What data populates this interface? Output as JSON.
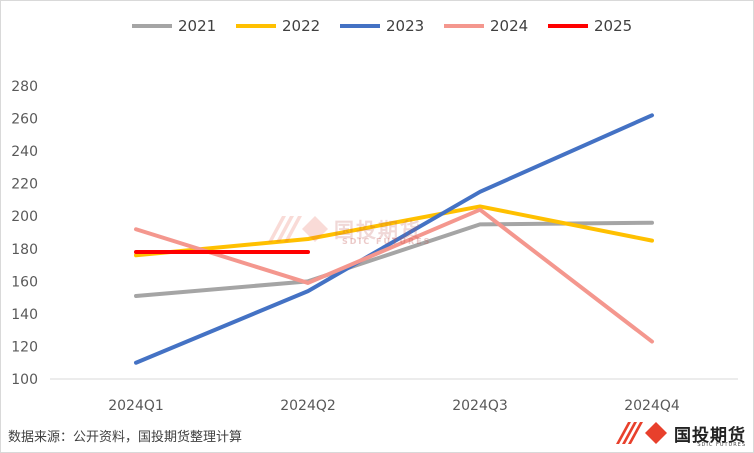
{
  "chart_data": {
    "type": "line",
    "categories": [
      "2024Q1",
      "2024Q2",
      "2024Q3",
      "2024Q4"
    ],
    "series": [
      {
        "name": "2021",
        "color": "#a5a5a5",
        "values": [
          151,
          160,
          195,
          196
        ]
      },
      {
        "name": "2022",
        "color": "#ffc000",
        "values": [
          176,
          186,
          206,
          185
        ]
      },
      {
        "name": "2023",
        "color": "#4472c4",
        "values": [
          110,
          154,
          215,
          262
        ]
      },
      {
        "name": "2024",
        "color": "#f4978e",
        "values": [
          192,
          159,
          204,
          123
        ]
      },
      {
        "name": "2025",
        "color": "#ff0000",
        "values": [
          178,
          178,
          null,
          null
        ]
      }
    ],
    "yticks": [
      100,
      120,
      140,
      160,
      180,
      200,
      220,
      240,
      260,
      280
    ],
    "ylim": [
      100,
      280
    ],
    "grid": false,
    "legend_position": "top-center"
  },
  "source_note": "数据来源：公开资料，国投期货整理计算",
  "logo": {
    "text": "国投期货",
    "sub": "SDIC FUTURES"
  },
  "watermark": {
    "text": "国投期货",
    "sub": "SDIC FUTURES"
  }
}
